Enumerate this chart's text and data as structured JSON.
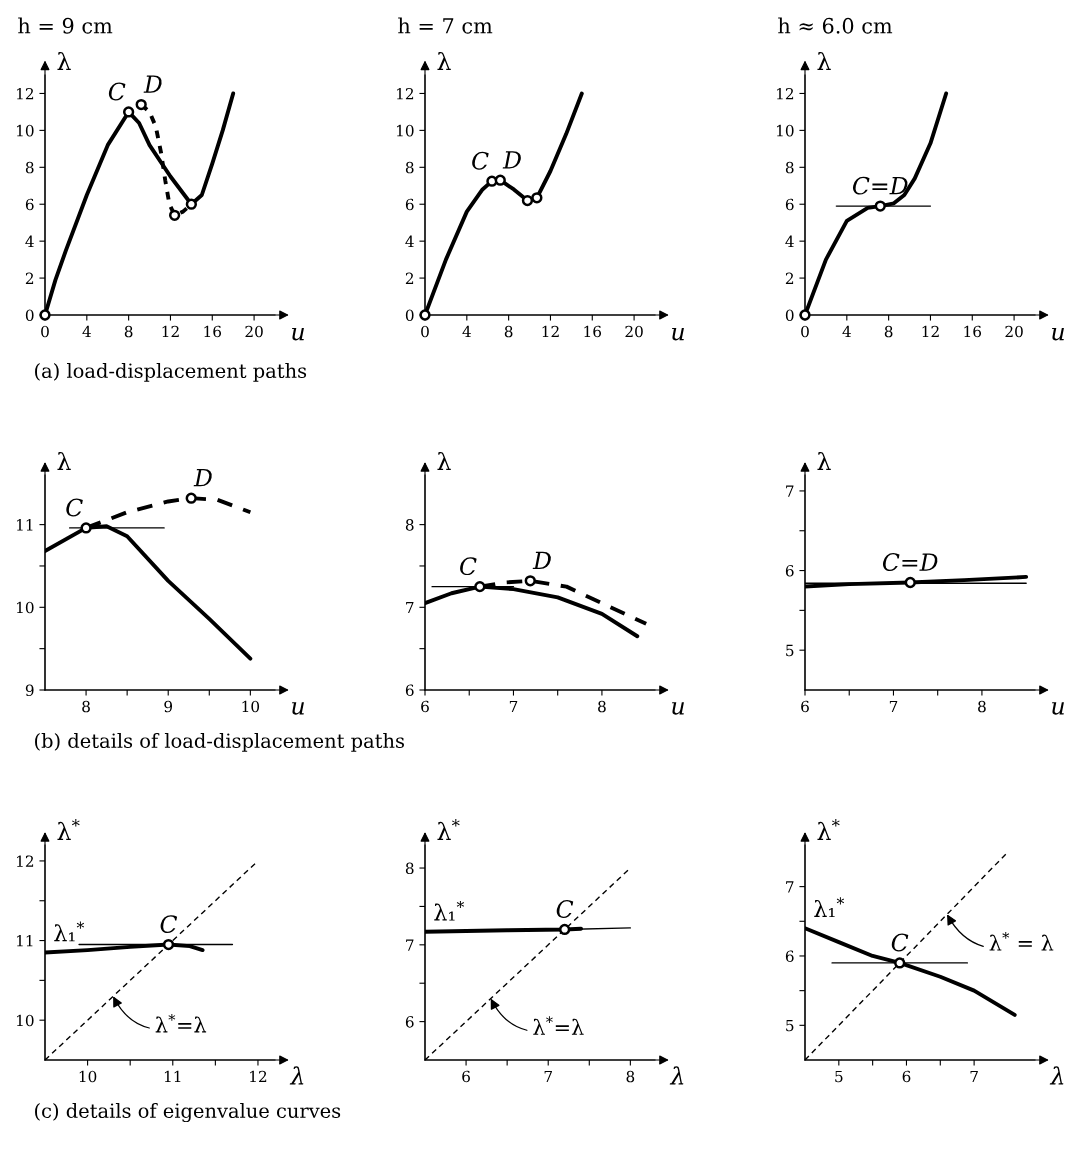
{
  "chart_data": [
    {
      "type": "line",
      "title": "h = 9 cm",
      "xlabel": "u",
      "ylabel": "λ",
      "xlim": [
        0,
        22
      ],
      "ylim": [
        0,
        13
      ],
      "xticks": [
        0,
        4,
        8,
        12,
        16,
        20
      ],
      "yticks": [
        0,
        2,
        4,
        6,
        8,
        10,
        12
      ],
      "annotations": [
        "(a) load-displacement paths"
      ],
      "series": [
        {
          "color": "#000000",
          "x": [
            0,
            1,
            2,
            4,
            6,
            8,
            9,
            10,
            12,
            14,
            15,
            16,
            17,
            18
          ],
          "values": [
            0,
            1.9,
            3.5,
            6.5,
            9.2,
            11,
            10.4,
            9.2,
            7.5,
            6,
            6.5,
            8.2,
            10,
            12
          ]
        },
        {
          "color": "#000000",
          "line_style": "dotted",
          "x": [
            9.2,
            10,
            10.6,
            11.1,
            11.5,
            11.9,
            12.4,
            13.2,
            14
          ],
          "values": [
            11.4,
            11,
            10.2,
            8.8,
            7.3,
            6,
            5.4,
            5.6,
            6
          ]
        },
        {
          "type": "scatter",
          "marker": "circle",
          "color": "#000000",
          "x": [
            0,
            8,
            9.2,
            12.4,
            14
          ],
          "values": [
            0,
            11,
            11.4,
            5.4,
            6
          ],
          "value_labels": [
            null,
            "C",
            "D",
            null,
            null
          ]
        }
      ]
    },
    {
      "type": "line",
      "title": "h = 7 cm",
      "xlabel": "u",
      "ylabel": "λ",
      "xlim": [
        0,
        22
      ],
      "ylim": [
        0,
        13
      ],
      "xticks": [
        0,
        4,
        8,
        12,
        16,
        20
      ],
      "yticks": [
        0,
        2,
        4,
        6,
        8,
        10,
        12
      ],
      "series": [
        {
          "color": "#000000",
          "x": [
            0,
            2,
            4,
            5.5,
            6.4,
            7.2,
            8.5,
            9.8,
            10.7,
            12,
            13.5,
            15
          ],
          "values": [
            0,
            3,
            5.6,
            6.8,
            7.25,
            7.3,
            6.8,
            6.2,
            6.35,
            7.8,
            9.8,
            12
          ]
        },
        {
          "type": "scatter",
          "marker": "circle",
          "color": "#000000",
          "x": [
            0,
            6.4,
            7.2,
            9.8,
            10.7
          ],
          "values": [
            0,
            7.25,
            7.3,
            6.2,
            6.35
          ],
          "value_labels": [
            null,
            "C",
            "D",
            null,
            null
          ]
        }
      ]
    },
    {
      "type": "line",
      "title": "h ≈ 6.0 cm",
      "xlabel": "u",
      "ylabel": "λ",
      "xlim": [
        0,
        22
      ],
      "ylim": [
        0,
        13
      ],
      "xticks": [
        0,
        4,
        8,
        12,
        16,
        20
      ],
      "yticks": [
        0,
        2,
        4,
        6,
        8,
        10,
        12
      ],
      "series": [
        {
          "color": "#000000",
          "x": [
            0,
            2,
            4,
            6,
            7.2,
            8.5,
            9.5,
            10.5,
            12,
            13.5
          ],
          "values": [
            0,
            3,
            5.1,
            5.8,
            5.9,
            6.05,
            6.5,
            7.4,
            9.3,
            12
          ]
        },
        {
          "color": "#000000",
          "x": [
            3,
            12
          ],
          "values": [
            5.9,
            5.9
          ]
        },
        {
          "type": "scatter",
          "marker": "circle",
          "color": "#000000",
          "x": [
            0,
            7.2
          ],
          "values": [
            0,
            5.9
          ],
          "value_labels": [
            null,
            "C=D"
          ]
        }
      ]
    },
    {
      "type": "line",
      "xlabel": "u",
      "ylabel": "λ",
      "xlim": [
        7.5,
        10.3
      ],
      "ylim": [
        9,
        11.6
      ],
      "xticks": [
        8,
        {
          "value": 8.5,
          "label": null
        },
        9,
        {
          "value": 9.5,
          "label": null
        },
        10
      ],
      "yticks": [
        9,
        {
          "value": 9.5,
          "label": null
        },
        10,
        {
          "value": 10.5,
          "label": null
        },
        11
      ],
      "annotations": [
        "(b) details of load-displacement paths"
      ],
      "series": [
        {
          "color": "#000000",
          "x": [
            7.5,
            8,
            8.25,
            8.5,
            9,
            9.5,
            10
          ],
          "values": [
            10.68,
            10.96,
            10.98,
            10.86,
            10.32,
            9.86,
            9.38
          ]
        },
        {
          "color": "#000000",
          "line_style": "dashed",
          "x": [
            8,
            8.5,
            9,
            9.28,
            9.6,
            10
          ],
          "values": [
            10.96,
            11.15,
            11.28,
            11.32,
            11.3,
            11.15
          ]
        },
        {
          "color": "#000000",
          "x": [
            7.8,
            8.95
          ],
          "values": [
            10.96,
            10.96
          ]
        },
        {
          "type": "scatter",
          "marker": "circle",
          "color": "#000000",
          "x": [
            8,
            9.28
          ],
          "values": [
            10.96,
            11.32
          ],
          "value_labels": [
            "C",
            "D"
          ]
        }
      ]
    },
    {
      "type": "line",
      "xlabel": "u",
      "ylabel": "λ",
      "xlim": [
        6,
        8.6
      ],
      "ylim": [
        6,
        8.6
      ],
      "xticks": [
        6,
        {
          "value": 6.5,
          "label": null
        },
        7,
        {
          "value": 7.5,
          "label": null
        },
        8
      ],
      "yticks": [
        6,
        {
          "value": 6.5,
          "label": null
        },
        7,
        {
          "value": 7.5,
          "label": null
        },
        8
      ],
      "series": [
        {
          "color": "#000000",
          "x": [
            6,
            6.3,
            6.62,
            7,
            7.5,
            8,
            8.4
          ],
          "values": [
            7.05,
            7.17,
            7.25,
            7.22,
            7.12,
            6.92,
            6.65
          ]
        },
        {
          "color": "#000000",
          "line_style": "dashed",
          "x": [
            6.62,
            6.9,
            7.19,
            7.6,
            8,
            8.5
          ],
          "values": [
            7.25,
            7.3,
            7.32,
            7.25,
            7.05,
            6.8
          ]
        },
        {
          "color": "#000000",
          "x": [
            6.08,
            7
          ],
          "values": [
            7.25,
            7.25
          ]
        },
        {
          "type": "scatter",
          "marker": "circle",
          "color": "#000000",
          "x": [
            6.62,
            7.19
          ],
          "values": [
            7.25,
            7.32
          ],
          "value_labels": [
            "C",
            "D"
          ]
        }
      ]
    },
    {
      "type": "line",
      "xlabel": "u",
      "ylabel": "λ",
      "xlim": [
        6,
        8.6
      ],
      "ylim": [
        4.5,
        7.2
      ],
      "xticks": [
        6,
        {
          "value": 6.5,
          "label": null
        },
        7,
        {
          "value": 7.5,
          "label": null
        },
        8
      ],
      "yticks": [
        5,
        {
          "value": 5.5,
          "label": null
        },
        6,
        {
          "value": 6.5,
          "label": null
        },
        7
      ],
      "series": [
        {
          "color": "#000000",
          "x": [
            6,
            6.5,
            7.19,
            7.8,
            8.5
          ],
          "values": [
            5.8,
            5.83,
            5.85,
            5.88,
            5.92
          ]
        },
        {
          "color": "#000000",
          "x": [
            6,
            8.5
          ],
          "values": [
            5.84,
            5.84
          ]
        },
        {
          "type": "scatter",
          "marker": "circle",
          "color": "#000000",
          "x": [
            7.19
          ],
          "values": [
            5.85
          ],
          "value_labels": [
            "C=D"
          ]
        }
      ]
    },
    {
      "type": "line",
      "xlabel": "λ",
      "ylabel": "λ$^{*}$",
      "xlim": [
        9.5,
        12.2
      ],
      "ylim": [
        9.5,
        12.2
      ],
      "xticks": [
        10,
        {
          "value": 10.5,
          "label": null
        },
        11,
        {
          "value": 11.5,
          "label": null
        },
        12
      ],
      "yticks": [
        10,
        {
          "value": 10.5,
          "label": null
        },
        11,
        {
          "value": 11.5,
          "label": null
        },
        12
      ],
      "annotations": [
        "(c) details of eigenvalue curves",
        {
          "text": "λ$^{*}$=λ",
          "x": 10.3,
          "y": 10.3
        }
      ],
      "series": [
        {
          "name": "λ₁$^{*}$",
          "color": "#000000",
          "x": [
            9.5,
            10,
            10.5,
            10.95,
            11.2,
            11.35
          ],
          "values": [
            10.85,
            10.88,
            10.92,
            10.95,
            10.93,
            10.88
          ]
        },
        {
          "color": "#000000",
          "x": [
            9.9,
            11.7
          ],
          "values": [
            10.95,
            10.95
          ]
        },
        {
          "color": "#000000",
          "line_style": "dashed",
          "x": [
            9.5,
            12
          ],
          "values": [
            9.5,
            12
          ]
        },
        {
          "type": "scatter",
          "marker": "circle",
          "color": "#000000",
          "x": [
            10.95
          ],
          "values": [
            10.95
          ],
          "value_labels": [
            "C"
          ]
        }
      ]
    },
    {
      "type": "line",
      "xlabel": "λ",
      "ylabel": "λ$^{*}$",
      "xlim": [
        5.5,
        8.3
      ],
      "ylim": [
        5.5,
        8.3
      ],
      "xticks": [
        6,
        {
          "value": 6.5,
          "label": null
        },
        7,
        {
          "value": 7.5,
          "label": null
        },
        8
      ],
      "yticks": [
        6,
        {
          "value": 6.5,
          "label": null
        },
        7,
        {
          "value": 7.5,
          "label": null
        },
        8
      ],
      "annotations": [
        {
          "text": "λ$^{*}$=λ",
          "x": 6.3,
          "y": 6.3
        }
      ],
      "series": [
        {
          "name": "λ₁$^{*}$",
          "color": "#000000",
          "x": [
            5.5,
            6.5,
            7.2,
            7.4
          ],
          "values": [
            7.17,
            7.19,
            7.2,
            7.21
          ]
        },
        {
          "color": "#000000",
          "x": [
            7.2,
            8
          ],
          "values": [
            7.2,
            7.22
          ]
        },
        {
          "color": "#000000",
          "line_style": "dashed",
          "x": [
            5.5,
            8
          ],
          "values": [
            5.5,
            8
          ]
        },
        {
          "type": "scatter",
          "marker": "circle",
          "color": "#000000",
          "x": [
            7.2
          ],
          "values": [
            7.2
          ],
          "value_labels": [
            "C"
          ]
        }
      ]
    },
    {
      "type": "line",
      "xlabel": "λ",
      "ylabel": "λ$^{*}$",
      "xlim": [
        4.5,
        7.9
      ],
      "ylim": [
        4.5,
        7.6
      ],
      "xticks": [
        5,
        {
          "value": 5.5,
          "label": null
        },
        6,
        {
          "value": 6.5,
          "label": null
        },
        7
      ],
      "yticks": [
        5,
        {
          "value": 5.5,
          "label": null
        },
        6,
        {
          "value": 6.5,
          "label": null
        },
        7
      ],
      "annotations": [
        {
          "text": "λ$^{*}$ = λ",
          "x": 6.6,
          "y": 6.6
        }
      ],
      "series": [
        {
          "name": "λ₁$^{*}$",
          "color": "#000000",
          "x": [
            4.5,
            5,
            5.5,
            5.9,
            6.5,
            7,
            7.6
          ],
          "values": [
            6.4,
            6.2,
            6.0,
            5.9,
            5.7,
            5.5,
            5.15
          ]
        },
        {
          "color": "#000000",
          "x": [
            4.9,
            6.9
          ],
          "values": [
            5.9,
            5.9
          ]
        },
        {
          "color": "#000000",
          "line_style": "dashed",
          "x": [
            4.5,
            7.5
          ],
          "values": [
            4.5,
            7.5
          ]
        },
        {
          "type": "scatter",
          "marker": "circle",
          "color": "#000000",
          "x": [
            5.9
          ],
          "values": [
            5.9
          ],
          "value_labels": [
            "C"
          ]
        }
      ]
    }
  ]
}
